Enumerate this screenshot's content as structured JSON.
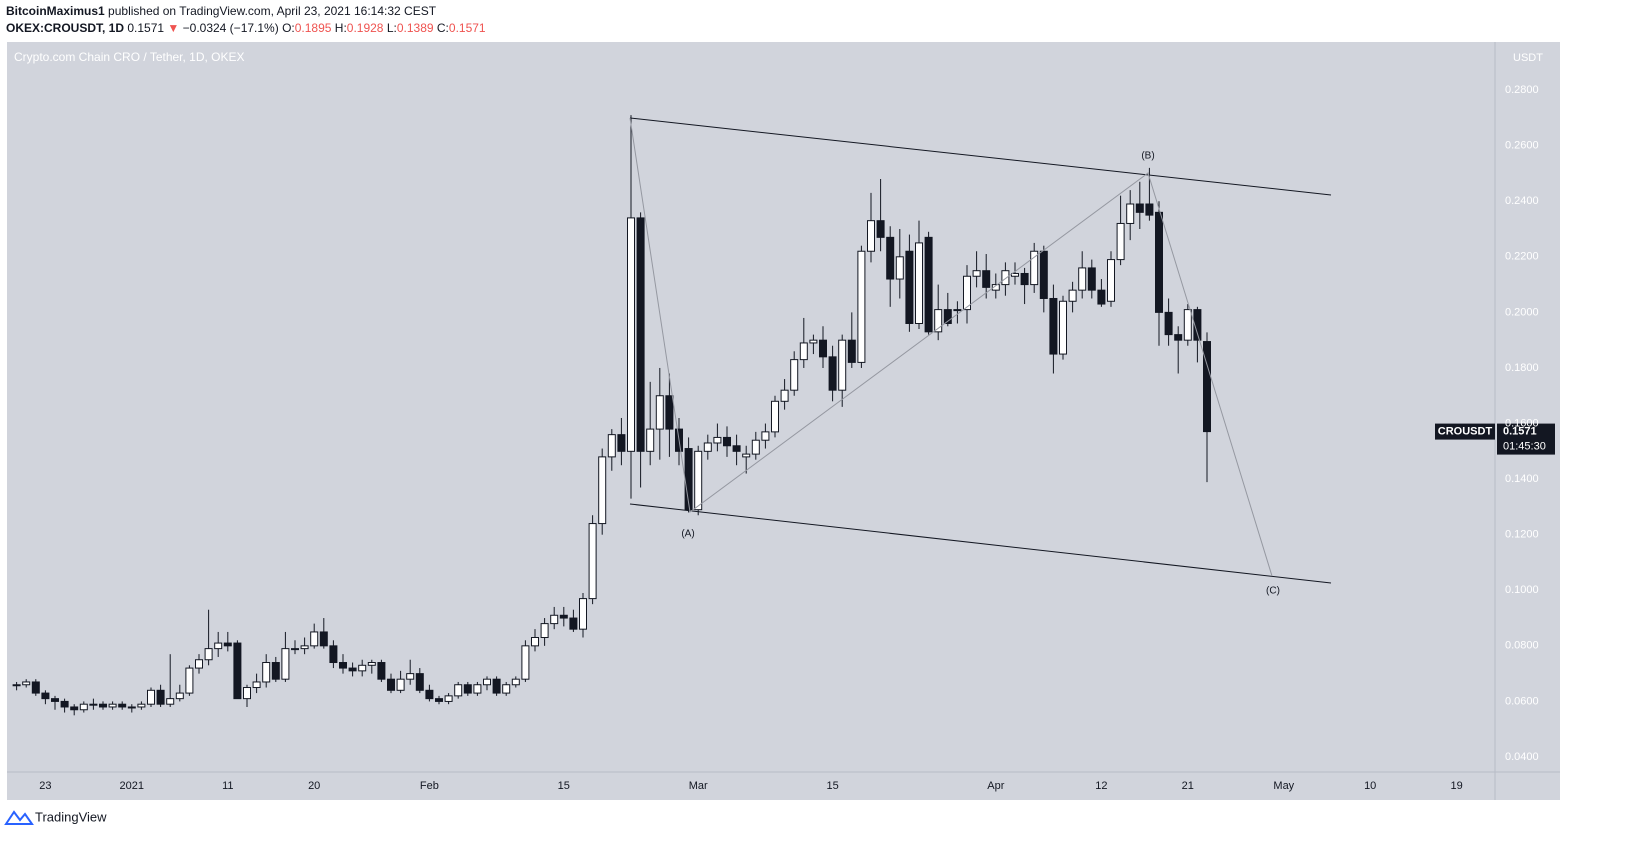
{
  "header": {
    "author": "BitcoinMaximus1",
    "published": "published on TradingView.com, April 23, 2021 16:14:32 CEST",
    "symbol": "OKEX:CROUSDT, 1D",
    "change_arrow": "▼",
    "change": "−0.0324 (−17.1%)",
    "ohlc_labels": [
      "O:",
      "H:",
      "L:",
      "C:"
    ]
  },
  "footer": {
    "brand": "TradingView"
  },
  "chart_data": {
    "type": "candlestick",
    "title": "Crypto.com Chain CRO / Tether, 1D, OKEX",
    "currency": "USDT",
    "up_color": "#ffffff",
    "down_color": "#131722",
    "grid": false,
    "wave_labels": [
      "(A)",
      "(B)",
      "(C)"
    ],
    "price_tag": {
      "symbol": "CROUSDT",
      "countdown": "01:45:30"
    },
    "xlim": [
      "2020-12-19",
      "2021-05-23"
    ],
    "xticks": [
      {
        "value": "2020-12-23",
        "label": "23"
      },
      {
        "value": "2021-01-01",
        "label": "2021"
      },
      {
        "value": "2021-01-11",
        "label": "11"
      },
      {
        "value": "2021-01-20",
        "label": "20"
      },
      {
        "value": "2021-02-01",
        "label": "Feb"
      },
      {
        "value": "2021-02-15",
        "label": "15"
      },
      {
        "value": "2021-03-01",
        "label": "Mar"
      },
      {
        "value": "2021-03-15",
        "label": "15"
      },
      {
        "value": "2021-04-01",
        "label": "Apr"
      },
      {
        "value": "2021-04-12",
        "label": "12"
      },
      {
        "value": "2021-04-21",
        "label": "21"
      },
      {
        "value": "2021-05-01",
        "label": "May"
      },
      {
        "value": "2021-05-10",
        "label": "10"
      },
      {
        "value": "2021-05-19",
        "label": "19"
      }
    ],
    "ylim": [
      0.0346,
      0.2973
    ],
    "yticks": [
      {
        "value": 0.04,
        "label": "0.0400"
      },
      {
        "value": 0.06,
        "label": "0.0600"
      },
      {
        "value": 0.08,
        "label": "0.0800"
      },
      {
        "value": 0.1,
        "label": "0.1000"
      },
      {
        "value": 0.12,
        "label": "0.1200"
      },
      {
        "value": 0.14,
        "label": "0.1400"
      },
      {
        "value": 0.16,
        "label": "0.1600"
      },
      {
        "value": 0.18,
        "label": "0.1800"
      },
      {
        "value": 0.2,
        "label": "0.2000"
      },
      {
        "value": 0.22,
        "label": "0.2200"
      },
      {
        "value": 0.24,
        "label": "0.2400"
      },
      {
        "value": 0.26,
        "label": "0.2600"
      },
      {
        "value": 0.28,
        "label": "0.2800"
      }
    ],
    "x": [
      "2020-12-20",
      "2020-12-21",
      "2020-12-22",
      "2020-12-23",
      "2020-12-24",
      "2020-12-25",
      "2020-12-26",
      "2020-12-27",
      "2020-12-28",
      "2020-12-29",
      "2020-12-30",
      "2020-12-31",
      "2021-01-01",
      "2021-01-02",
      "2021-01-03",
      "2021-01-04",
      "2021-01-05",
      "2021-01-06",
      "2021-01-07",
      "2021-01-08",
      "2021-01-09",
      "2021-01-10",
      "2021-01-11",
      "2021-01-12",
      "2021-01-13",
      "2021-01-14",
      "2021-01-15",
      "2021-01-16",
      "2021-01-17",
      "2021-01-18",
      "2021-01-19",
      "2021-01-20",
      "2021-01-21",
      "2021-01-22",
      "2021-01-23",
      "2021-01-24",
      "2021-01-25",
      "2021-01-26",
      "2021-01-27",
      "2021-01-28",
      "2021-01-29",
      "2021-01-30",
      "2021-01-31",
      "2021-02-01",
      "2021-02-02",
      "2021-02-03",
      "2021-02-04",
      "2021-02-05",
      "2021-02-06",
      "2021-02-07",
      "2021-02-08",
      "2021-02-09",
      "2021-02-10",
      "2021-02-11",
      "2021-02-12",
      "2021-02-13",
      "2021-02-14",
      "2021-02-15",
      "2021-02-16",
      "2021-02-17",
      "2021-02-18",
      "2021-02-19",
      "2021-02-20",
      "2021-02-21",
      "2021-02-22",
      "2021-02-23",
      "2021-02-24",
      "2021-02-25",
      "2021-02-26",
      "2021-02-27",
      "2021-02-28",
      "2021-03-01",
      "2021-03-02",
      "2021-03-03",
      "2021-03-04",
      "2021-03-05",
      "2021-03-06",
      "2021-03-07",
      "2021-03-08",
      "2021-03-09",
      "2021-03-10",
      "2021-03-11",
      "2021-03-12",
      "2021-03-13",
      "2021-03-14",
      "2021-03-15",
      "2021-03-16",
      "2021-03-17",
      "2021-03-18",
      "2021-03-19",
      "2021-03-20",
      "2021-03-21",
      "2021-03-22",
      "2021-03-23",
      "2021-03-24",
      "2021-03-25",
      "2021-03-26",
      "2021-03-27",
      "2021-03-28",
      "2021-03-29",
      "2021-03-30",
      "2021-03-31",
      "2021-04-01",
      "2021-04-02",
      "2021-04-03",
      "2021-04-04",
      "2021-04-05",
      "2021-04-06",
      "2021-04-07",
      "2021-04-08",
      "2021-04-09",
      "2021-04-10",
      "2021-04-11",
      "2021-04-12",
      "2021-04-13",
      "2021-04-14",
      "2021-04-15",
      "2021-04-16",
      "2021-04-17",
      "2021-04-18",
      "2021-04-19",
      "2021-04-20",
      "2021-04-21",
      "2021-04-22",
      "2021-04-23"
    ],
    "open": [
      0.066,
      0.066,
      0.067,
      0.063,
      0.061,
      0.06,
      0.058,
      0.057,
      0.059,
      0.059,
      0.058,
      0.059,
      0.058,
      0.058,
      0.059,
      0.064,
      0.059,
      0.061,
      0.063,
      0.072,
      0.075,
      0.079,
      0.081,
      0.081,
      0.061,
      0.065,
      0.067,
      0.074,
      0.068,
      0.079,
      0.079,
      0.08,
      0.085,
      0.08,
      0.074,
      0.072,
      0.071,
      0.073,
      0.074,
      0.068,
      0.064,
      0.068,
      0.07,
      0.064,
      0.061,
      0.06,
      0.062,
      0.066,
      0.063,
      0.066,
      0.068,
      0.063,
      0.066,
      0.068,
      0.08,
      0.083,
      0.088,
      0.091,
      0.09,
      0.086,
      0.097,
      0.124,
      0.148,
      0.156,
      0.15,
      0.234,
      0.15,
      0.158,
      0.17,
      0.158,
      0.151,
      0.129,
      0.15,
      0.153,
      0.155,
      0.152,
      0.148,
      0.149,
      0.154,
      0.157,
      0.168,
      0.172,
      0.183,
      0.189,
      0.19,
      0.184,
      0.172,
      0.19,
      0.182,
      0.222,
      0.233,
      0.227,
      0.212,
      0.222,
      0.196,
      0.227,
      0.193,
      0.201,
      0.201,
      0.201,
      0.213,
      0.215,
      0.208,
      0.21,
      0.213,
      0.214,
      0.21,
      0.222,
      0.205,
      0.185,
      0.204,
      0.208,
      0.216,
      0.208,
      0.204,
      0.219,
      0.232,
      0.239,
      0.239,
      0.236,
      0.2,
      0.192,
      0.19,
      0.201,
      0.1895
    ],
    "high": [
      0.067,
      0.068,
      0.068,
      0.064,
      0.062,
      0.061,
      0.059,
      0.06,
      0.061,
      0.06,
      0.06,
      0.06,
      0.059,
      0.06,
      0.065,
      0.066,
      0.077,
      0.066,
      0.073,
      0.077,
      0.093,
      0.085,
      0.085,
      0.082,
      0.066,
      0.07,
      0.077,
      0.076,
      0.085,
      0.082,
      0.083,
      0.088,
      0.09,
      0.082,
      0.077,
      0.074,
      0.075,
      0.075,
      0.075,
      0.07,
      0.071,
      0.075,
      0.072,
      0.066,
      0.062,
      0.063,
      0.067,
      0.067,
      0.067,
      0.069,
      0.069,
      0.067,
      0.069,
      0.082,
      0.086,
      0.09,
      0.094,
      0.094,
      0.093,
      0.099,
      0.127,
      0.151,
      0.158,
      0.162,
      0.271,
      0.236,
      0.175,
      0.18,
      0.178,
      0.162,
      0.155,
      0.152,
      0.156,
      0.16,
      0.159,
      0.156,
      0.152,
      0.157,
      0.16,
      0.17,
      0.176,
      0.186,
      0.198,
      0.192,
      0.195,
      0.188,
      0.192,
      0.2,
      0.224,
      0.243,
      0.248,
      0.231,
      0.23,
      0.228,
      0.233,
      0.229,
      0.21,
      0.207,
      0.204,
      0.217,
      0.222,
      0.221,
      0.214,
      0.218,
      0.218,
      0.216,
      0.225,
      0.224,
      0.21,
      0.206,
      0.211,
      0.222,
      0.219,
      0.212,
      0.222,
      0.242,
      0.244,
      0.247,
      0.252,
      0.24,
      0.205,
      0.195,
      0.203,
      0.202,
      0.1928
    ],
    "low": [
      0.064,
      0.065,
      0.062,
      0.059,
      0.057,
      0.056,
      0.055,
      0.056,
      0.057,
      0.057,
      0.057,
      0.057,
      0.056,
      0.057,
      0.058,
      0.058,
      0.058,
      0.06,
      0.062,
      0.07,
      0.073,
      0.076,
      0.078,
      0.061,
      0.058,
      0.063,
      0.065,
      0.067,
      0.067,
      0.077,
      0.077,
      0.079,
      0.079,
      0.072,
      0.07,
      0.069,
      0.069,
      0.07,
      0.067,
      0.063,
      0.063,
      0.066,
      0.063,
      0.06,
      0.059,
      0.059,
      0.061,
      0.062,
      0.062,
      0.064,
      0.062,
      0.062,
      0.065,
      0.067,
      0.078,
      0.08,
      0.086,
      0.087,
      0.085,
      0.083,
      0.095,
      0.12,
      0.143,
      0.145,
      0.133,
      0.137,
      0.145,
      0.147,
      0.148,
      0.145,
      0.128,
      0.127,
      0.147,
      0.15,
      0.148,
      0.145,
      0.142,
      0.147,
      0.151,
      0.155,
      0.165,
      0.17,
      0.18,
      0.185,
      0.18,
      0.168,
      0.166,
      0.18,
      0.18,
      0.218,
      0.222,
      0.202,
      0.205,
      0.193,
      0.194,
      0.192,
      0.19,
      0.195,
      0.196,
      0.196,
      0.209,
      0.205,
      0.205,
      0.206,
      0.21,
      0.203,
      0.207,
      0.2,
      0.178,
      0.183,
      0.2,
      0.205,
      0.205,
      0.202,
      0.202,
      0.217,
      0.226,
      0.23,
      0.233,
      0.188,
      0.188,
      0.178,
      0.188,
      0.182,
      0.1389
    ],
    "close": [
      0.066,
      0.067,
      0.063,
      0.061,
      0.06,
      0.058,
      0.057,
      0.059,
      0.059,
      0.058,
      0.059,
      0.058,
      0.058,
      0.059,
      0.064,
      0.059,
      0.061,
      0.063,
      0.072,
      0.075,
      0.079,
      0.081,
      0.08,
      0.061,
      0.065,
      0.067,
      0.074,
      0.068,
      0.079,
      0.079,
      0.08,
      0.085,
      0.08,
      0.074,
      0.072,
      0.071,
      0.073,
      0.074,
      0.068,
      0.064,
      0.068,
      0.07,
      0.064,
      0.061,
      0.06,
      0.062,
      0.066,
      0.063,
      0.066,
      0.068,
      0.063,
      0.066,
      0.068,
      0.08,
      0.083,
      0.088,
      0.091,
      0.09,
      0.086,
      0.097,
      0.124,
      0.148,
      0.156,
      0.15,
      0.234,
      0.15,
      0.158,
      0.17,
      0.158,
      0.15,
      0.129,
      0.15,
      0.153,
      0.155,
      0.152,
      0.15,
      0.149,
      0.154,
      0.157,
      0.168,
      0.172,
      0.183,
      0.189,
      0.19,
      0.184,
      0.172,
      0.19,
      0.182,
      0.222,
      0.233,
      0.227,
      0.212,
      0.22,
      0.196,
      0.225,
      0.193,
      0.201,
      0.196,
      0.201,
      0.213,
      0.215,
      0.209,
      0.21,
      0.215,
      0.214,
      0.21,
      0.222,
      0.205,
      0.185,
      0.204,
      0.208,
      0.216,
      0.208,
      0.203,
      0.219,
      0.232,
      0.239,
      0.236,
      0.235,
      0.2,
      0.192,
      0.19,
      0.201,
      0.19,
      0.1571
    ]
  }
}
